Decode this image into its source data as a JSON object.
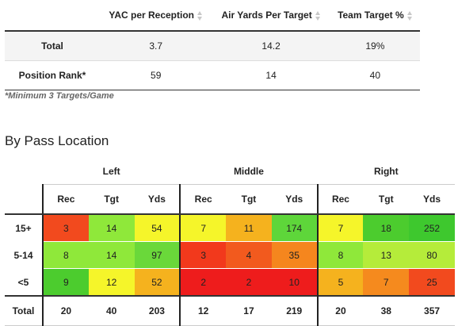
{
  "stats_table": {
    "columns": [
      "YAC per Reception",
      "Air Yards Per Target",
      "Team Target %"
    ],
    "rows": [
      {
        "label": "Total",
        "values": [
          "3.7",
          "14.2",
          "19%"
        ]
      },
      {
        "label": "Position Rank*",
        "values": [
          "59",
          "14",
          "40"
        ]
      }
    ]
  },
  "footnote": "*Minimum 3 Targets/Game",
  "section_title": "By Pass Location",
  "pass_location": {
    "groups": [
      "Left",
      "Middle",
      "Right"
    ],
    "sub_columns": [
      "Rec",
      "Tgt",
      "Yds"
    ],
    "rows": [
      {
        "label": "15+",
        "values": [
          "3",
          "14",
          "54",
          "7",
          "11",
          "174",
          "7",
          "18",
          "252"
        ],
        "colors": [
          "#f24a1e",
          "#8fe83a",
          "#f5f52a",
          "#f5f52a",
          "#f5b21e",
          "#5ed63a",
          "#f5f52a",
          "#4ccc2e",
          "#3ec82e"
        ]
      },
      {
        "label": "5-14",
        "values": [
          "8",
          "14",
          "97",
          "3",
          "4",
          "35",
          "8",
          "13",
          "80"
        ],
        "colors": [
          "#8fe83a",
          "#8fe83a",
          "#6ad83a",
          "#f2391c",
          "#f25a1e",
          "#f5861e",
          "#8fe83a",
          "#b5ec3a",
          "#b5ec3a"
        ]
      },
      {
        "label": "<5",
        "values": [
          "9",
          "12",
          "52",
          "2",
          "2",
          "10",
          "5",
          "7",
          "25"
        ],
        "colors": [
          "#4ccc2e",
          "#f5f52a",
          "#f5b21e",
          "#ee1c1c",
          "#ee1c1c",
          "#ee1c1c",
          "#f5b21e",
          "#f58a1e",
          "#f24a1e"
        ]
      }
    ],
    "total": {
      "label": "Total",
      "values": [
        "20",
        "40",
        "203",
        "12",
        "17",
        "219",
        "20",
        "38",
        "357"
      ]
    }
  }
}
